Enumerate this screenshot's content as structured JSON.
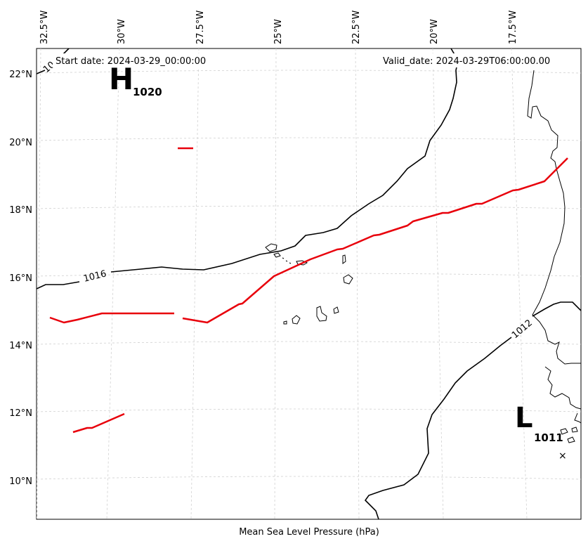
{
  "map": {
    "start_date_text": "Start date: 2024-03-29_00:00:00",
    "valid_date_text": "Valid_date: 2024-03-29T06:00:00.00",
    "footer_label": "Mean Sea Level Pressure (hPa)",
    "lon_labels": [
      "32.5°W",
      "30°W",
      "27.5°W",
      "25°W",
      "22.5°W",
      "20°W",
      "17.5°W"
    ],
    "lat_labels": [
      "22°N",
      "20°N",
      "18°N",
      "16°N",
      "14°N",
      "12°N",
      "10°N"
    ],
    "high_center": {
      "symbol": "H",
      "value": "1020"
    },
    "low_center": {
      "symbol": "L",
      "value": "1011"
    },
    "isobar_labels": {
      "isobar_1016": "1016",
      "isobar_1012": "1012",
      "isobar_1020_partial": "10"
    },
    "center_marker": "×",
    "colors": {
      "isobar": "#000000",
      "front": "#e8000b",
      "coast": "#000000",
      "grid": "#cccccc"
    }
  }
}
